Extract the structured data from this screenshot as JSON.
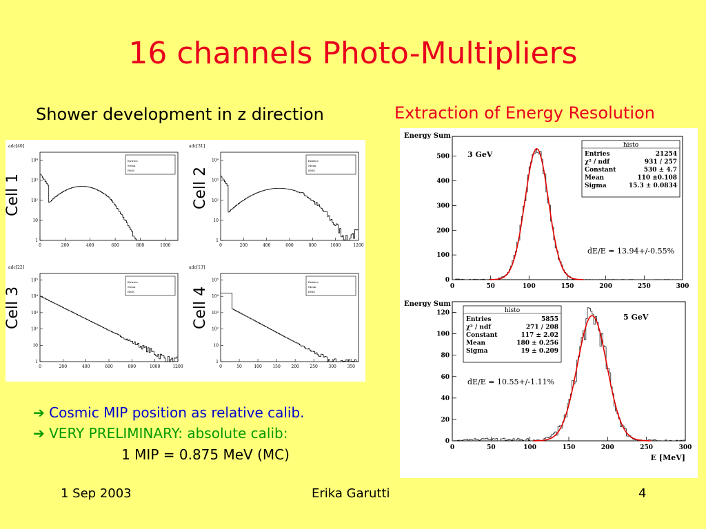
{
  "slide": {
    "title": "16 channels Photo-Multipliers",
    "left_heading": "Shower development in z direction",
    "right_heading": "Extraction of Energy Resolution",
    "bullets": [
      {
        "arrow": "➔",
        "text": "Cosmic MIP position as relative calib."
      },
      {
        "arrow": "➔",
        "text": "VERY PRELIMINARY: absolute calib:"
      }
    ],
    "mip_line": "1 MIP = 0.875 MeV (MC)",
    "footer": {
      "date": "1 Sep 2003",
      "author": "Erika Garutti",
      "page": "4"
    }
  },
  "chart_data": [
    {
      "type": "histogram",
      "panel_label": "Cell 1",
      "title": "adc[40]",
      "x_ticks": [
        0,
        200,
        400,
        600,
        800,
        1000
      ],
      "x_range": [
        0,
        1100
      ],
      "y_scale": "log",
      "y_ticks": [
        "1",
        "10",
        "10²",
        "10³",
        "10⁴"
      ],
      "stat_box": [
        "Entries",
        "Mean",
        "RMS"
      ]
    },
    {
      "type": "histogram",
      "panel_label": "Cell 2",
      "title": "adc[31]",
      "x_ticks": [
        0,
        200,
        400,
        600,
        800,
        1000,
        1200
      ],
      "x_range": [
        0,
        1200
      ],
      "y_scale": "log",
      "y_ticks": [
        "1",
        "10",
        "10²",
        "10³",
        "10⁴"
      ],
      "stat_box": [
        "Entries",
        "Mean",
        "RMS"
      ]
    },
    {
      "type": "histogram",
      "panel_label": "Cell 3",
      "title": "adc[22]",
      "x_ticks": [
        0,
        200,
        400,
        600,
        800,
        1000,
        1200
      ],
      "x_range": [
        0,
        1200
      ],
      "y_scale": "log",
      "y_ticks": [
        "1",
        "10",
        "10²",
        "10³",
        "10⁴",
        "10⁵"
      ],
      "stat_box": [
        "Entries",
        "Mean",
        "RMS"
      ]
    },
    {
      "type": "histogram",
      "panel_label": "Cell 4",
      "title": "adc[13]",
      "x_ticks": [
        0,
        50,
        100,
        150,
        200,
        250,
        300,
        350
      ],
      "x_range": [
        0,
        370
      ],
      "y_scale": "log",
      "y_ticks": [
        "1",
        "10",
        "10²",
        "10³",
        "10⁴",
        "10⁵"
      ],
      "stat_box": [
        "Entries",
        "Mean",
        "RMS"
      ]
    },
    {
      "type": "histogram",
      "title": "Energy Sum",
      "annotation": "3 GeV",
      "resolution": "dE/E = 13.94+/-0.55%",
      "x_ticks": [
        0,
        50,
        100,
        150,
        200,
        250,
        300
      ],
      "x_range": [
        0,
        300
      ],
      "y_ticks": [
        0,
        100,
        200,
        300,
        400,
        500
      ],
      "y_range": [
        0,
        580
      ],
      "fit": {
        "type": "gaussian",
        "constant": 530,
        "mean": 110,
        "sigma": 15.3
      },
      "stats": {
        "name": "histo",
        "rows": [
          [
            "Entries",
            "21254"
          ],
          [
            "χ² / ndf",
            "931 / 257"
          ],
          [
            "Constant",
            "530 ± 4.7"
          ],
          [
            "Mean",
            "110 ±0.108"
          ],
          [
            "Sigma",
            "15.3 ± 0.0834"
          ]
        ]
      }
    },
    {
      "type": "histogram",
      "title": "Energy Sum",
      "annotation": "5 GeV",
      "resolution": "dE/E = 10.55+/-1.11%",
      "xlabel": "E [MeV]",
      "x_ticks": [
        0,
        50,
        100,
        150,
        200,
        250,
        300
      ],
      "x_range": [
        0,
        300
      ],
      "y_ticks": [
        0,
        20,
        40,
        60,
        80,
        100,
        120
      ],
      "y_range": [
        0,
        130
      ],
      "fit": {
        "type": "gaussian",
        "constant": 117,
        "mean": 180,
        "sigma": 19
      },
      "stats": {
        "name": "histo",
        "rows": [
          [
            "Entries",
            "5855"
          ],
          [
            "χ² / ndf",
            "271 / 208"
          ],
          [
            "Constant",
            "117 ± 2.02"
          ],
          [
            "Mean",
            "180 ± 0.256"
          ],
          [
            "Sigma",
            "19 ± 0.209"
          ]
        ]
      }
    }
  ]
}
